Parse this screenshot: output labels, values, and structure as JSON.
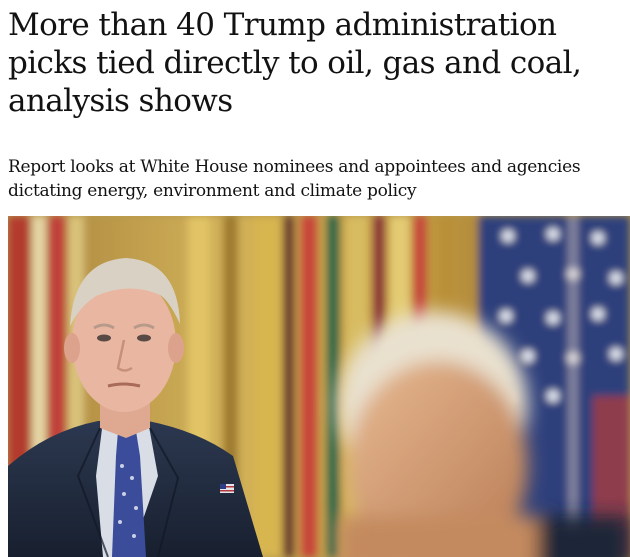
{
  "article": {
    "headline": "More than 40 Trump administration picks tied directly to oil, gas and coal, analysis shows",
    "standfirst": "Report looks at White House nominees and appointees and agencies dictating energy, environment and climate policy"
  },
  "photo": {
    "subject": "news-photo"
  },
  "colors": {
    "text": "#121212",
    "background": "#ffffff"
  }
}
